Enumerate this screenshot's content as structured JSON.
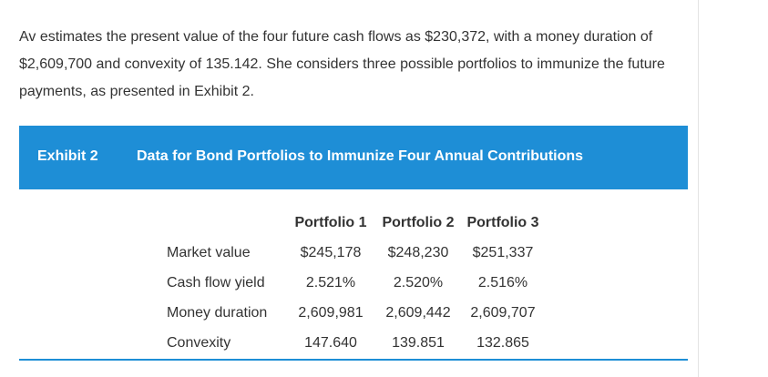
{
  "intro": {
    "text": "Av estimates the present value of the four future cash flows as $230,372, with a money duration of $2,609,700 and convexity of 135.142. She considers three possible portfolios to immunize the future payments, as presented in Exhibit 2."
  },
  "exhibit": {
    "label": "Exhibit 2",
    "title": "Data for Bond Portfolios to Immunize Four Annual Contributions"
  },
  "table": {
    "columns": [
      "Portfolio 1",
      "Portfolio 2",
      "Portfolio 3"
    ],
    "rows": [
      {
        "label": "Market value",
        "values": [
          "$245,178",
          "$248,230",
          "$251,337"
        ]
      },
      {
        "label": "Cash flow yield",
        "values": [
          "2.521%",
          "2.520%",
          "2.516%"
        ]
      },
      {
        "label": "Money duration",
        "values": [
          "2,609,981",
          "2,609,442",
          "2,609,707"
        ]
      },
      {
        "label": "Convexity",
        "values": [
          "147.640",
          "139.851",
          "132.865"
        ]
      }
    ]
  },
  "colors": {
    "header_background": "#1e8ed6",
    "text": "#333333"
  }
}
